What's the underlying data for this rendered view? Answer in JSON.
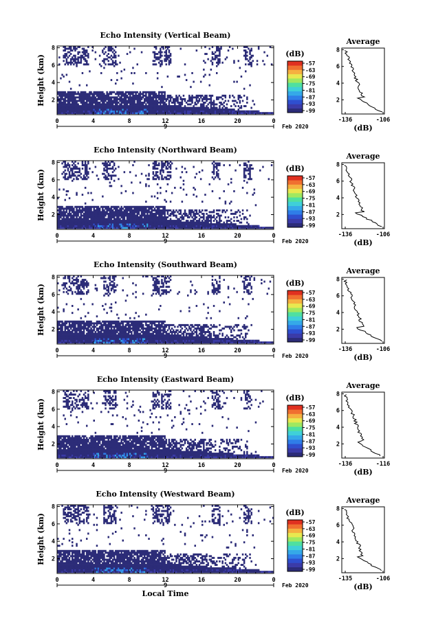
{
  "colors": {
    "scale": [
      "#2c2c78",
      "#3b3ba8",
      "#2f4fcf",
      "#2f7de8",
      "#35a9e8",
      "#3fd0d8",
      "#4fe0a0",
      "#a0e860",
      "#e8e850",
      "#f5b040",
      "#f07030",
      "#e03020"
    ],
    "line": "#000000"
  },
  "chart_data": [
    {
      "type": "heatmap",
      "title": "Echo Intensity (Vertical Beam)",
      "ylabel": "Height (km)",
      "x_ticks": [
        "0",
        "4",
        "8",
        "12",
        "16",
        "20",
        "0"
      ],
      "y_ticks": [
        "2",
        "4",
        "6",
        "8"
      ],
      "xlim": [
        0,
        24
      ],
      "ylim": [
        0.3,
        8.2
      ],
      "date_label": "9",
      "date_suffix": "Feb 2020",
      "colorbar": {
        "unit": "(dB)",
        "ticks": [
          "-57",
          "-63",
          "-69",
          "-75",
          "-81",
          "-87",
          "-93",
          "-99"
        ]
      },
      "profile": {
        "title": "Average",
        "xlabel": "(dB)",
        "x_ticks": [
          "-136",
          "-106"
        ],
        "y_ticks": [
          "2",
          "4",
          "6",
          "8"
        ]
      }
    },
    {
      "type": "heatmap",
      "title": "Echo Intensity (Northward Beam)",
      "ylabel": "Height (km)",
      "x_ticks": [
        "0",
        "4",
        "8",
        "12",
        "16",
        "20",
        "0"
      ],
      "y_ticks": [
        "2",
        "4",
        "6",
        "8"
      ],
      "xlim": [
        0,
        24
      ],
      "ylim": [
        0.3,
        8.2
      ],
      "date_label": "9",
      "date_suffix": "Feb 2020",
      "colorbar": {
        "unit": "(dB)",
        "ticks": [
          "-57",
          "-63",
          "-69",
          "-75",
          "-81",
          "-87",
          "-93",
          "-99"
        ]
      },
      "profile": {
        "title": "Average",
        "xlabel": "(dB)",
        "x_ticks": [
          "-136",
          "-106"
        ],
        "y_ticks": [
          "2",
          "4",
          "6",
          "8"
        ]
      }
    },
    {
      "type": "heatmap",
      "title": "Echo Intensity (Southward Beam)",
      "ylabel": "Height (km)",
      "x_ticks": [
        "0",
        "4",
        "8",
        "12",
        "16",
        "20",
        "0"
      ],
      "y_ticks": [
        "2",
        "4",
        "6",
        "8"
      ],
      "xlim": [
        0,
        24
      ],
      "ylim": [
        0.3,
        8.2
      ],
      "date_label": "9",
      "date_suffix": "Feb 2020",
      "colorbar": {
        "unit": "(dB)",
        "ticks": [
          "-57",
          "-63",
          "-69",
          "-75",
          "-81",
          "-87",
          "-93",
          "-99"
        ]
      },
      "profile": {
        "title": "Average",
        "xlabel": "(dB)",
        "x_ticks": [
          "-136",
          "-106"
        ],
        "y_ticks": [
          "2",
          "4",
          "6",
          "8"
        ]
      }
    },
    {
      "type": "heatmap",
      "title": "Echo Intensity (Eastward Beam)",
      "ylabel": "Height (km)",
      "x_ticks": [
        "0",
        "4",
        "8",
        "12",
        "16",
        "20",
        "0"
      ],
      "y_ticks": [
        "2",
        "4",
        "6",
        "8"
      ],
      "xlim": [
        0,
        24
      ],
      "ylim": [
        0.3,
        8.2
      ],
      "date_label": "9",
      "date_suffix": "Feb 2020",
      "colorbar": {
        "unit": "(dB)",
        "ticks": [
          "-57",
          "-63",
          "-69",
          "-75",
          "-81",
          "-87",
          "-93",
          "-99"
        ]
      },
      "profile": {
        "title": "Average",
        "xlabel": "(dB)",
        "x_ticks": [
          "-136",
          "-116"
        ],
        "y_ticks": [
          "2",
          "4",
          "6",
          "8"
        ]
      }
    },
    {
      "type": "heatmap",
      "title": "Echo Intensity (Westward Beam)",
      "ylabel": "Height (km)",
      "x_ticks": [
        "0",
        "4",
        "8",
        "12",
        "16",
        "20",
        "0"
      ],
      "y_ticks": [
        "2",
        "4",
        "6",
        "8"
      ],
      "xlim": [
        0,
        24
      ],
      "ylim": [
        0.3,
        8.2
      ],
      "date_label": "9",
      "date_suffix": "Feb 2020",
      "colorbar": {
        "unit": "(dB)",
        "ticks": [
          "-57",
          "-63",
          "-69",
          "-75",
          "-81",
          "-87",
          "-93",
          "-99"
        ]
      },
      "profile": {
        "title": "Average",
        "xlabel": "(dB)",
        "x_ticks": [
          "-135",
          "-106"
        ],
        "y_ticks": [
          "2",
          "4",
          "6",
          "8"
        ]
      }
    }
  ],
  "xlabel": "Local Time"
}
